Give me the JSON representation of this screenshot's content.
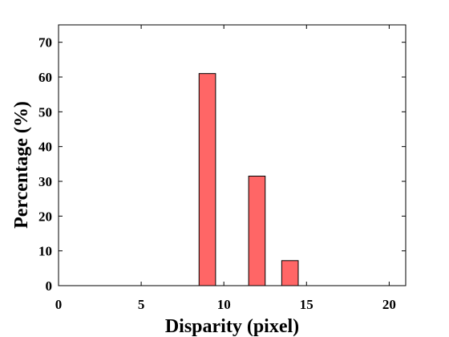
{
  "chart_data": {
    "type": "bar",
    "title": "",
    "xlabel": "Disparity (pixel)",
    "ylabel": "Percentage (%)",
    "xlim": [
      0,
      21
    ],
    "ylim": [
      0,
      75
    ],
    "xticks": [
      0,
      5,
      10,
      15,
      20
    ],
    "yticks": [
      0,
      10,
      20,
      30,
      40,
      50,
      60,
      70
    ],
    "grid": false,
    "legend": "none",
    "bar_color": "#ff6666",
    "bar_edge_color": "#000000",
    "bar_width": 1,
    "x": [
      9,
      12,
      14
    ],
    "values": [
      61,
      31.5,
      7.2
    ]
  }
}
